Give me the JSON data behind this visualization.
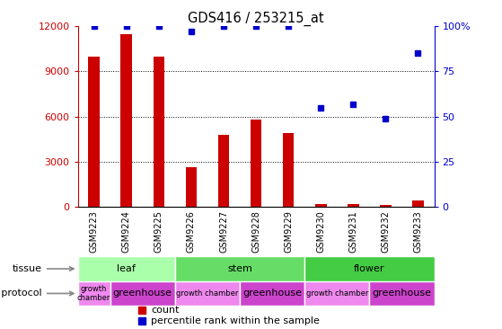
{
  "title": "GDS416 / 253215_at",
  "samples": [
    "GSM9223",
    "GSM9224",
    "GSM9225",
    "GSM9226",
    "GSM9227",
    "GSM9228",
    "GSM9229",
    "GSM9230",
    "GSM9231",
    "GSM9232",
    "GSM9233"
  ],
  "counts": [
    10000,
    11500,
    10000,
    2600,
    4800,
    5800,
    4900,
    200,
    200,
    100,
    400
  ],
  "percentiles": [
    100,
    100,
    100,
    97,
    100,
    100,
    100,
    55,
    57,
    49,
    85
  ],
  "ylim_left": [
    0,
    12000
  ],
  "ylim_right": [
    0,
    100
  ],
  "yticks_left": [
    0,
    3000,
    6000,
    9000,
    12000
  ],
  "yticks_right": [
    0,
    25,
    50,
    75,
    100
  ],
  "ytick_labels_right": [
    "0",
    "25",
    "50",
    "75",
    "100%"
  ],
  "bar_color": "#cc0000",
  "dot_color": "#0000cc",
  "tissue_groups": [
    {
      "label": "leaf",
      "start": 0,
      "end": 3,
      "color": "#aaffaa"
    },
    {
      "label": "stem",
      "start": 3,
      "end": 7,
      "color": "#66dd66"
    },
    {
      "label": "flower",
      "start": 7,
      "end": 11,
      "color": "#44cc44"
    }
  ],
  "protocol_groups": [
    {
      "label": "growth\nchamber",
      "start": 0,
      "end": 1,
      "color": "#ee88ee"
    },
    {
      "label": "greenhouse",
      "start": 1,
      "end": 3,
      "color": "#cc44cc"
    },
    {
      "label": "growth chamber",
      "start": 3,
      "end": 5,
      "color": "#ee88ee"
    },
    {
      "label": "greenhouse",
      "start": 5,
      "end": 7,
      "color": "#cc44cc"
    },
    {
      "label": "growth chamber",
      "start": 7,
      "end": 9,
      "color": "#ee88ee"
    },
    {
      "label": "greenhouse",
      "start": 9,
      "end": 11,
      "color": "#cc44cc"
    }
  ],
  "legend_count_label": "count",
  "legend_pct_label": "percentile rank within the sample",
  "tick_area_color": "#cccccc",
  "grid_dotted_at": [
    3000,
    6000,
    9000
  ],
  "label_fontsize": 8,
  "sample_fontsize": 7
}
